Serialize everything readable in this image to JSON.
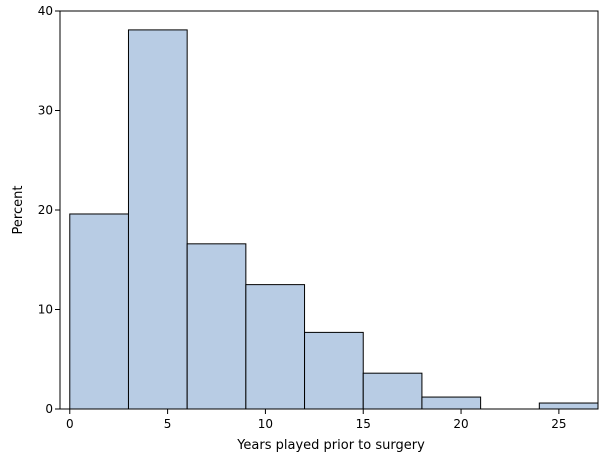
{
  "chart_data": {
    "type": "bar",
    "xlabel": "Years played prior to surgery",
    "ylabel": "Percent",
    "xlim": [
      -0.5,
      27
    ],
    "ylim": [
      0,
      40
    ],
    "xticks": [
      "0",
      "5",
      "10",
      "15",
      "20",
      "25"
    ],
    "yticks": [
      "0",
      "10",
      "20",
      "30",
      "40"
    ],
    "bins": [
      {
        "start": 0,
        "end": 3,
        "value": 19.6
      },
      {
        "start": 3,
        "end": 6,
        "value": 38.1
      },
      {
        "start": 6,
        "end": 9,
        "value": 16.6
      },
      {
        "start": 9,
        "end": 12,
        "value": 12.5
      },
      {
        "start": 12,
        "end": 15,
        "value": 7.7
      },
      {
        "start": 15,
        "end": 18,
        "value": 3.6
      },
      {
        "start": 18,
        "end": 21,
        "value": 1.2
      },
      {
        "start": 21,
        "end": 24,
        "value": 0
      },
      {
        "start": 24,
        "end": 27,
        "value": 0.6
      }
    ],
    "colors": {
      "bar_fill": "#b8cce4",
      "bar_stroke": "#000000"
    },
    "grid": false
  }
}
